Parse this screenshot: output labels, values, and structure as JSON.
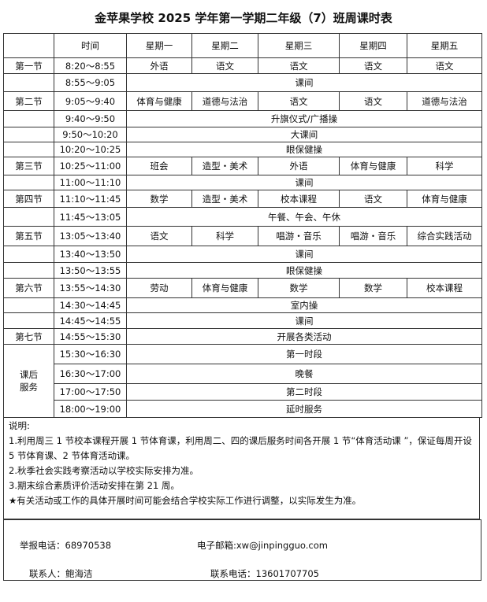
{
  "title": "金苹果学校 2025 学年第一学期二年级（7）班周课时表",
  "header": [
    "",
    "时间",
    "星期一",
    "星期二",
    "星期三",
    "星期四",
    "星期五"
  ],
  "rows": [
    {
      "period": "第一节",
      "time": "8:20～8:55",
      "cells": [
        "外语",
        "语文",
        "语文",
        "语文",
        "语文"
      ]
    },
    {
      "period": "",
      "time": "8:55～9:05",
      "span": "课间"
    },
    {
      "period": "第二节",
      "time": "9:05～9:40",
      "cells": [
        "体育与健康",
        "道德与法治",
        "语文",
        "语文",
        "道德与法治"
      ]
    },
    {
      "period": "",
      "time": "9:40～9:50",
      "span": "升旗仪式/广播操"
    },
    {
      "period": "",
      "time": "9:50～10:20",
      "span": "大课间"
    },
    {
      "period": "",
      "time": "10:20～10:25",
      "span": "眼保健操"
    },
    {
      "period": "第三节",
      "time": "10:25～11:00",
      "cells": [
        "班会",
        "造型・美术",
        "外语",
        "体育与健康",
        "科学"
      ]
    },
    {
      "period": "",
      "time": "11:00～11:10",
      "span": "课间"
    },
    {
      "period": "第四节",
      "time": "11:10～11:45",
      "cells": [
        "数学",
        "造型・美术",
        "校本课程",
        "语文",
        "体育与健康"
      ]
    },
    {
      "period": "",
      "time": "11:45～13:05",
      "span": "午餐、午会、午休"
    },
    {
      "period": "第五节",
      "time": "13:05～13:40",
      "cells": [
        "语文",
        "科学",
        "唱游・音乐",
        "唱游・音乐",
        "综合实践活动"
      ]
    },
    {
      "period": "",
      "time": "13:40～13:50",
      "span": "课间"
    },
    {
      "period": "",
      "time": "13:50～13:55",
      "span": "眼保健操"
    },
    {
      "period": "第六节",
      "time": "13:55～14:30",
      "cells": [
        "劳动",
        "体育与健康",
        "数学",
        "数学",
        "校本课程"
      ]
    },
    {
      "period": "",
      "time": "14:30～14:45",
      "span": "室内操"
    },
    {
      "period": "",
      "time": "14:45～14:55",
      "span": "课间"
    },
    {
      "period": "第七节",
      "time": "14:55～15:30",
      "span": "开展各类活动"
    },
    {
      "period": "课后\n服务",
      "time": "15:30～16:30",
      "span": "第一时段",
      "rowspan": 4
    },
    {
      "time": "16:30～17:00",
      "span": "晚餐"
    },
    {
      "time": "17:00～17:50",
      "span": "第二时段"
    },
    {
      "time": "18:00～19:00",
      "span": "延时服务"
    }
  ],
  "notes": {
    "heading": "说明:",
    "items": [
      "1.利用周三 1 节校本课程开展 1 节体育课，利用周二、四的课后服务时间各开展 1 节“体育活动课 ”，保证每周开设 5 节体育课、2 节体育活动课。",
      "2.秋季社会实践考察活动以学校实际安排为准。",
      "3.期末综合素质评价活动安排在第 21 周。",
      "★有关活动或工作的具体开展时间可能会结合学校实际工作进行调整，以实际发生为准。"
    ]
  },
  "contact": {
    "report_phone": "举报电话：68970538",
    "email": "电子邮箱:xw@jinpingguo.com",
    "person": "联系人：鲍海洁",
    "phone": "联系电话：13601707705"
  }
}
